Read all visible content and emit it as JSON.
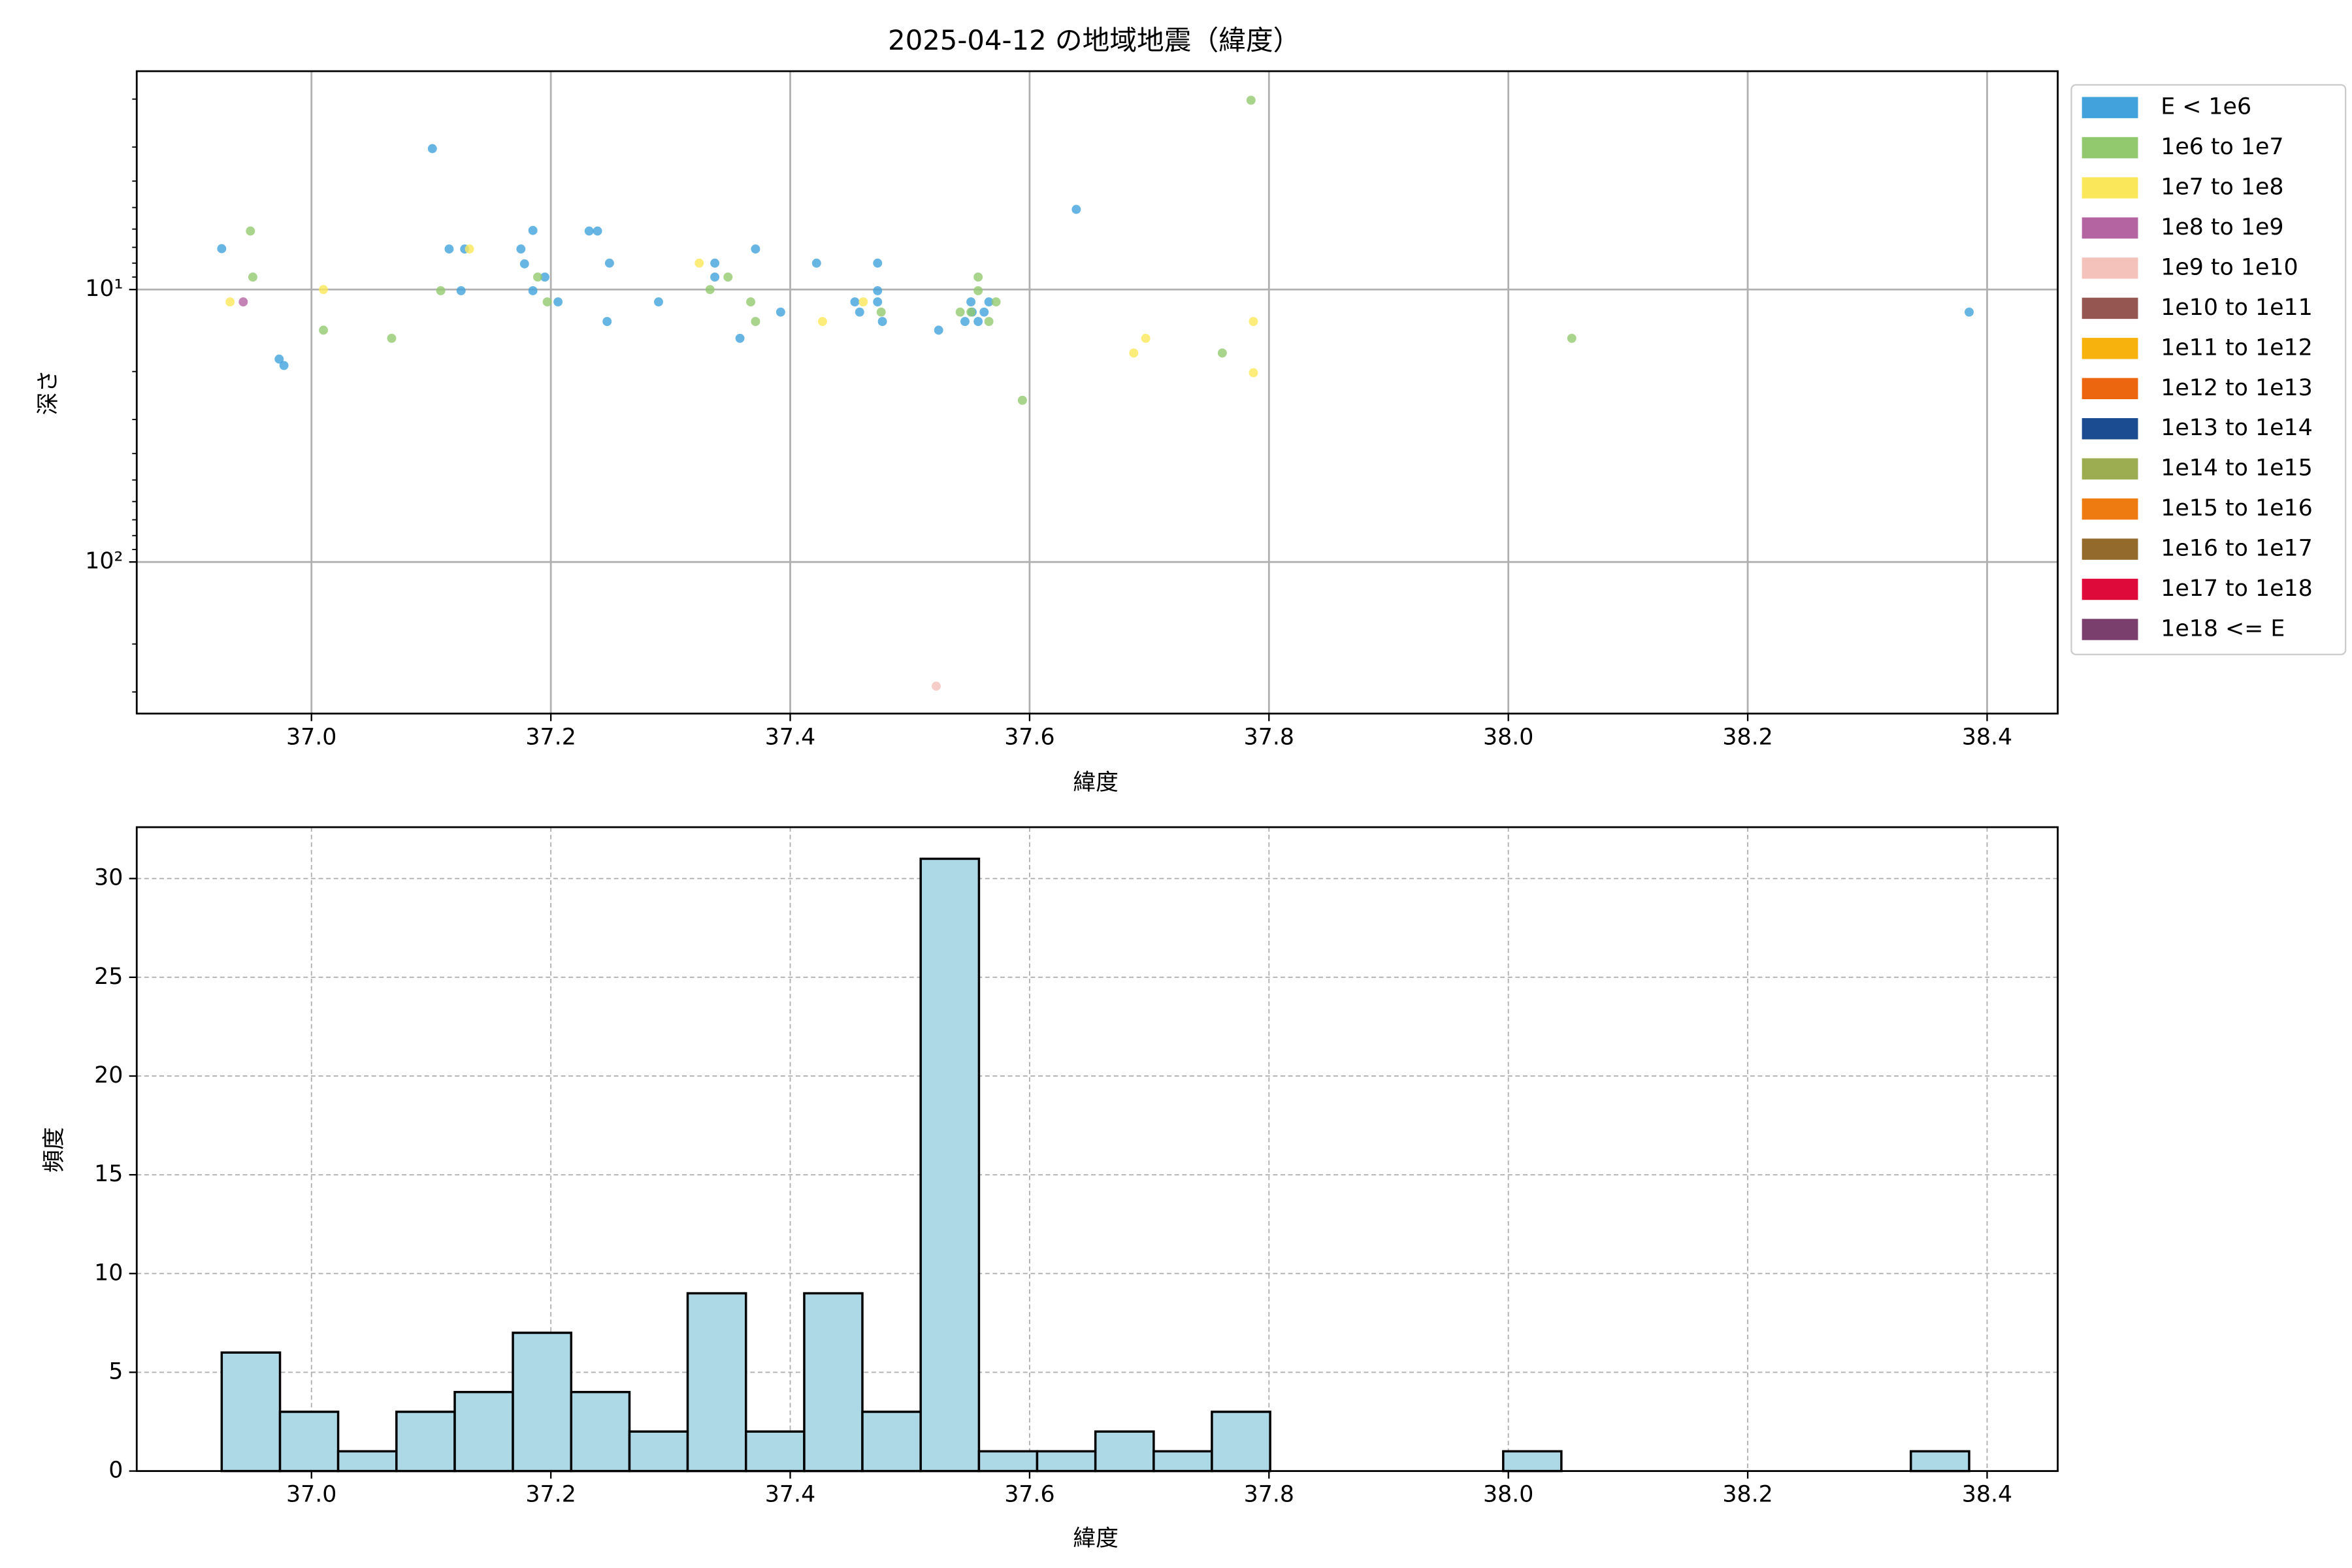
{
  "chart_data": [
    {
      "type": "scatter",
      "title": "2025-04-12 の地域地震（緯度）",
      "xlabel": "緯度",
      "ylabel": "深さ",
      "yscale": "log",
      "grid": true,
      "grid_style": "solid",
      "legend": "outside-right",
      "xlim": [
        36.854,
        38.459
      ],
      "ylim": [
        360,
        1.58
      ],
      "xticks": [
        {
          "value": 37,
          "label": "37.0"
        },
        37.2,
        37.4,
        37.6,
        37.8,
        {
          "value": 38,
          "label": "38.0"
        },
        38.2,
        38.4
      ],
      "yticks": [
        {
          "value": 10,
          "label": "10¹"
        },
        {
          "value": 100,
          "label": "10²"
        }
      ],
      "series": [
        {
          "name": "E < 1e6",
          "color": "#41a2dc",
          "x": [
            36.925,
            37.101,
            36.973,
            36.977,
            37.115,
            37.128,
            37.125,
            37.175,
            37.178,
            37.185,
            37.185,
            37.195,
            37.206,
            37.232,
            37.239,
            37.249,
            37.247,
            37.29,
            37.337,
            37.337,
            37.371,
            37.358,
            37.392,
            37.422,
            37.454,
            37.458,
            37.473,
            37.473,
            37.473,
            37.477,
            37.524,
            37.546,
            37.551,
            37.557,
            37.562,
            37.566,
            37.639,
            38.385,
            37.552
          ],
          "values": [
            7.08,
            3.04,
            18.0,
            19.0,
            7.1,
            7.1,
            10.1,
            7.1,
            8.05,
            6.07,
            10.1,
            9.0,
            11.1,
            6.1,
            6.1,
            8.0,
            13.1,
            11.1,
            8.0,
            9.0,
            7.1,
            15.1,
            12.1,
            8.0,
            11.1,
            12.1,
            8.0,
            10.1,
            11.1,
            13.1,
            14.1,
            13.1,
            11.1,
            13.1,
            12.1,
            11.1,
            5.08,
            12.1,
            12.1
          ]
        },
        {
          "name": "1e6 to 1e7",
          "color": "#92c96f",
          "x": [
            36.949,
            36.951,
            37.01,
            37.067,
            37.108,
            37.189,
            37.197,
            37.333,
            37.348,
            37.367,
            37.371,
            37.476,
            37.542,
            37.557,
            37.557,
            37.566,
            37.572,
            37.594,
            37.761,
            37.785,
            38.053,
            37.551
          ],
          "values": [
            6.1,
            9.0,
            14.1,
            15.1,
            10.1,
            9.0,
            11.1,
            10.0,
            9.0,
            11.1,
            13.1,
            12.1,
            12.1,
            9.0,
            10.1,
            13.1,
            11.1,
            25.5,
            17.1,
            2.02,
            15.1,
            12.1
          ]
        },
        {
          "name": "1e7 to 1e8",
          "color": "#fbe85a",
          "x": [
            36.932,
            37.01,
            37.132,
            37.324,
            37.427,
            37.461,
            37.687,
            37.697,
            37.787,
            37.787
          ],
          "values": [
            11.1,
            10.0,
            7.1,
            8.0,
            13.1,
            11.1,
            17.1,
            15.1,
            13.1,
            20.2
          ]
        },
        {
          "name": "1e8 to 1e9",
          "color": "#b564a2",
          "x": [
            36.943
          ],
          "values": [
            11.1
          ]
        },
        {
          "name": "1e9 to 1e10",
          "color": "#f4c2bb",
          "x": [
            37.522
          ],
          "values": [
            285.6
          ]
        },
        {
          "name": "1e10 to 1e11",
          "color": "#955550",
          "x": [],
          "values": []
        },
        {
          "name": "1e11 to 1e12",
          "color": "#f7b20d",
          "x": [],
          "values": []
        },
        {
          "name": "1e12 to 1e13",
          "color": "#ec6610",
          "x": [],
          "values": []
        },
        {
          "name": "1e13 to 1e14",
          "color": "#1b4b91",
          "x": [],
          "values": []
        },
        {
          "name": "1e14 to 1e15",
          "color": "#9bad50",
          "x": [],
          "values": []
        },
        {
          "name": "1e15 to 1e16",
          "color": "#ee7b12",
          "x": [],
          "values": []
        },
        {
          "name": "1e16 to 1e17",
          "color": "#946a2c",
          "x": [],
          "values": []
        },
        {
          "name": "1e17 to 1e18",
          "color": "#de0a3a",
          "x": [],
          "values": []
        },
        {
          "name": "1e18 <= E",
          "color": "#7a3f6c",
          "x": [],
          "values": []
        }
      ]
    },
    {
      "type": "histogram",
      "xlabel": "緯度",
      "ylabel": "頻度",
      "grid": true,
      "grid_style": "dashed",
      "color": "#add8e6",
      "edgecolor": "#000000",
      "xlim": [
        36.854,
        38.459
      ],
      "ylim": [
        0,
        32.6
      ],
      "xticks": [
        {
          "value": 37,
          "label": "37.0"
        },
        37.2,
        37.4,
        37.6,
        37.8,
        {
          "value": 38,
          "label": "38.0"
        },
        38.2,
        38.4
      ],
      "yticks": [
        0,
        5,
        10,
        15,
        20,
        25,
        30
      ],
      "bins": [
        36.925,
        36.9737,
        37.0223,
        37.071,
        37.1197,
        37.1683,
        37.217,
        37.2657,
        37.3143,
        37.363,
        37.4117,
        37.4603,
        37.509,
        37.5577,
        37.6063,
        37.655,
        37.7037,
        37.7523,
        37.801,
        37.8497,
        37.8983,
        37.947,
        37.9957,
        38.0443,
        38.093,
        38.1417,
        38.1903,
        38.239,
        38.2877,
        38.3363,
        38.385
      ],
      "values": [
        6,
        3,
        1,
        3,
        4,
        7,
        4,
        2,
        9,
        2,
        9,
        3,
        31,
        1,
        1,
        2,
        1,
        3,
        0,
        0,
        0,
        0,
        1,
        0,
        0,
        0,
        0,
        0,
        0,
        1
      ]
    }
  ]
}
